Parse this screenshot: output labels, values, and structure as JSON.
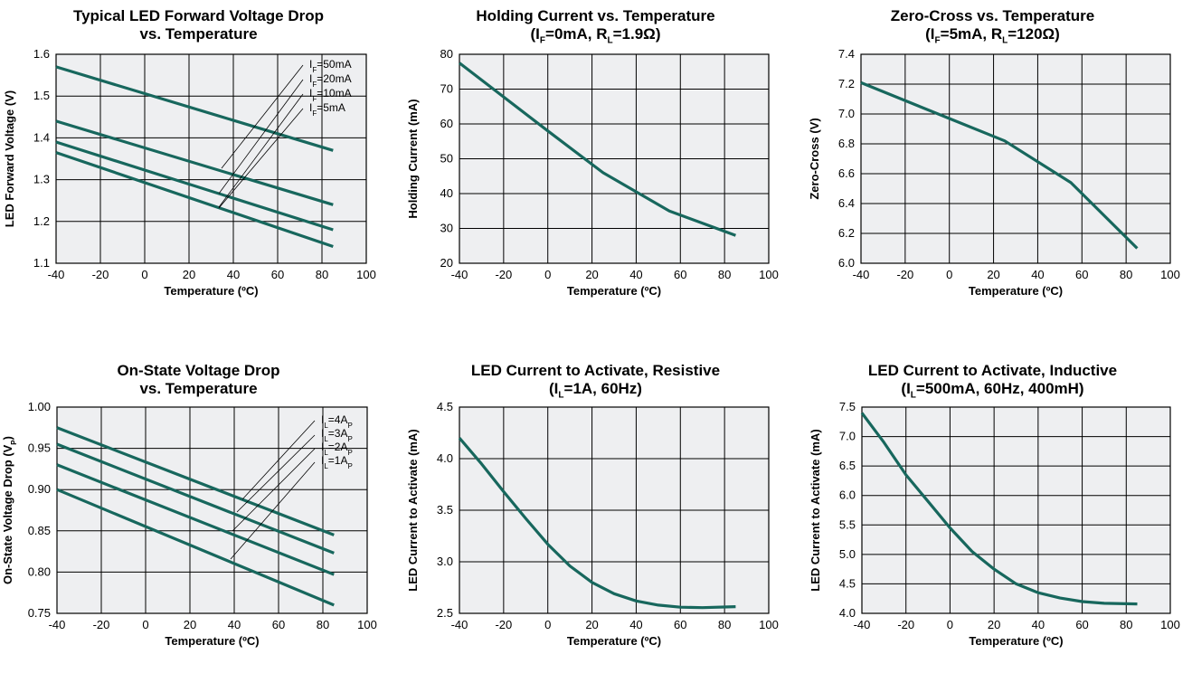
{
  "chart_data": [
    {
      "type": "line",
      "title_line1": "Typical LED Forward Voltage Drop",
      "title_line2": "vs. Temperature",
      "xlabel": "Temperature (ºC)",
      "ylabel": "LED Forward Voltage (V)",
      "xlim": [
        -40,
        100
      ],
      "ylim": [
        1.1,
        1.6
      ],
      "xticks": [
        -40,
        -20,
        0,
        20,
        40,
        60,
        80,
        100
      ],
      "yticks": [
        1.1,
        1.2,
        1.3,
        1.4,
        1.5,
        1.6
      ],
      "ydecimals": 1,
      "grid": true,
      "legend": [
        {
          "base": "I",
          "sub": "F",
          "text": "=50mA"
        },
        {
          "base": "I",
          "sub": "F",
          "text": "=20mA"
        },
        {
          "base": "I",
          "sub": "F",
          "text": "=10mA"
        },
        {
          "base": "I",
          "sub": "F",
          "text": "=5mA"
        }
      ],
      "series": [
        {
          "x": [
            -40,
            85
          ],
          "y": [
            1.57,
            1.37
          ]
        },
        {
          "x": [
            -40,
            85
          ],
          "y": [
            1.44,
            1.24
          ]
        },
        {
          "x": [
            -40,
            85
          ],
          "y": [
            1.39,
            1.18
          ]
        },
        {
          "x": [
            -40,
            85
          ],
          "y": [
            1.365,
            1.14
          ]
        }
      ]
    },
    {
      "type": "line",
      "title_line1": "Holding Current vs. Temperature",
      "title_line2": {
        "a": "(I",
        "a_sub": "F",
        "b": "=0mA, R",
        "b_sub": "L",
        "c": "=1.9Ω)"
      },
      "xlabel": "Temperature (ºC)",
      "ylabel": "Holding Current (mA)",
      "xlim": [
        -40,
        100
      ],
      "ylim": [
        20,
        80
      ],
      "xticks": [
        -40,
        -20,
        0,
        20,
        40,
        60,
        80,
        100
      ],
      "yticks": [
        20,
        30,
        40,
        50,
        60,
        70,
        80
      ],
      "ydecimals": 0,
      "grid": true,
      "series": [
        {
          "x": [
            -40,
            0,
            25,
            55,
            85
          ],
          "y": [
            77.5,
            58,
            46,
            35,
            28
          ]
        }
      ]
    },
    {
      "type": "line",
      "title_line1": "Zero-Cross vs. Temperature",
      "title_line2": {
        "a": "(I",
        "a_sub": "F",
        "b": "=5mA, R",
        "b_sub": "L",
        "c": "=120Ω)"
      },
      "xlabel": "Temperature (ºC)",
      "ylabel": "Zero-Cross (V)",
      "xlim": [
        -40,
        100
      ],
      "ylim": [
        6.0,
        7.4
      ],
      "xticks": [
        -40,
        -20,
        0,
        20,
        40,
        60,
        80,
        100
      ],
      "yticks": [
        6.0,
        6.2,
        6.4,
        6.6,
        6.8,
        7.0,
        7.2,
        7.4
      ],
      "ydecimals": 1,
      "grid": true,
      "series": [
        {
          "x": [
            -40,
            0,
            25,
            55,
            85
          ],
          "y": [
            7.21,
            6.97,
            6.82,
            6.54,
            6.1
          ]
        }
      ]
    },
    {
      "type": "line",
      "title_line1": "On-State Voltage Drop",
      "title_line2": "vs. Temperature",
      "xlabel": "Temperature (ºC)",
      "ylabel": {
        "a": "On-State Voltage Drop (V",
        "sub": "P",
        "b": ")"
      },
      "xlim": [
        -40,
        100
      ],
      "ylim": [
        0.75,
        1.0
      ],
      "xticks": [
        -40,
        -20,
        0,
        20,
        40,
        60,
        80,
        100
      ],
      "yticks": [
        0.75,
        0.8,
        0.85,
        0.9,
        0.95,
        1.0
      ],
      "ydecimals": 2,
      "grid": true,
      "legend": [
        {
          "base": "I",
          "sub": "L",
          "text": "=4A",
          "sub2": "P"
        },
        {
          "base": "I",
          "sub": "L",
          "text": "=3A",
          "sub2": "P"
        },
        {
          "base": "I",
          "sub": "L",
          "text": "=2A",
          "sub2": "P"
        },
        {
          "base": "I",
          "sub": "L",
          "text": "=1A",
          "sub2": "P"
        }
      ],
      "series": [
        {
          "x": [
            -40,
            85
          ],
          "y": [
            0.975,
            0.845
          ]
        },
        {
          "x": [
            -40,
            85
          ],
          "y": [
            0.955,
            0.823
          ]
        },
        {
          "x": [
            -40,
            85
          ],
          "y": [
            0.93,
            0.797
          ]
        },
        {
          "x": [
            -40,
            85
          ],
          "y": [
            0.9,
            0.76
          ]
        }
      ]
    },
    {
      "type": "line",
      "title_line1": "LED Current to Activate, Resistive",
      "title_line2": {
        "a": "(I",
        "a_sub": "L",
        "b": "=1A, 60Hz)"
      },
      "xlabel": "Temperature (ºC)",
      "ylabel": "LED Current to Activate (mA)",
      "xlim": [
        -40,
        100
      ],
      "ylim": [
        2.5,
        4.5
      ],
      "xticks": [
        -40,
        -20,
        0,
        20,
        40,
        60,
        80,
        100
      ],
      "yticks": [
        2.5,
        3.0,
        3.5,
        4.0,
        4.5
      ],
      "ydecimals": 1,
      "grid": true,
      "series": [
        {
          "x": [
            -40,
            -30,
            -20,
            -10,
            0,
            10,
            20,
            30,
            40,
            50,
            60,
            70,
            85
          ],
          "y": [
            4.2,
            3.95,
            3.68,
            3.42,
            3.17,
            2.96,
            2.8,
            2.69,
            2.62,
            2.58,
            2.56,
            2.555,
            2.565
          ]
        }
      ]
    },
    {
      "type": "line",
      "title_line1": "LED Current to Activate, Inductive",
      "title_line2": {
        "a": "(I",
        "a_sub": "L",
        "b": "=500mA, 60Hz, 400mH)"
      },
      "xlabel": "Temperature (ºC)",
      "ylabel": "LED Current to Activate (mA)",
      "xlim": [
        -40,
        100
      ],
      "ylim": [
        4.0,
        7.5
      ],
      "xticks": [
        -40,
        -20,
        0,
        20,
        40,
        60,
        80,
        100
      ],
      "yticks": [
        4.0,
        4.5,
        5.0,
        5.5,
        6.0,
        6.5,
        7.0,
        7.5
      ],
      "ydecimals": 1,
      "grid": true,
      "series": [
        {
          "x": [
            -40,
            -30,
            -20,
            -10,
            0,
            10,
            20,
            30,
            40,
            50,
            60,
            70,
            85
          ],
          "y": [
            7.4,
            6.9,
            6.35,
            5.9,
            5.45,
            5.05,
            4.75,
            4.5,
            4.35,
            4.26,
            4.2,
            4.17,
            4.16
          ]
        }
      ]
    }
  ],
  "colors": {
    "line": "#17675d",
    "plot_bg": "#eeeff1",
    "grid": "#000000"
  }
}
